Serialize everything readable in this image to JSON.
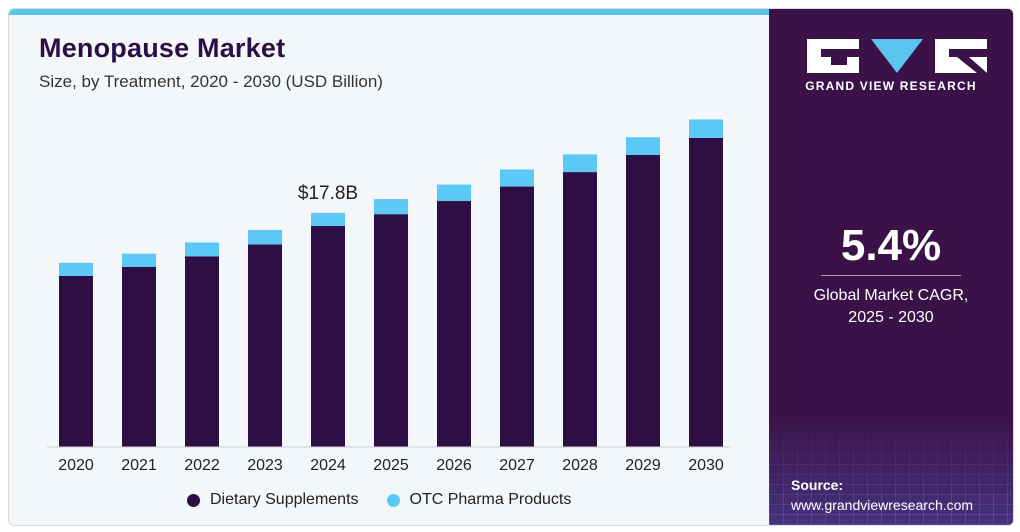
{
  "header": {
    "title": "Menopause Market",
    "subtitle": "Size, by Treatment, 2020 - 2030 (USD Billion)"
  },
  "colors": {
    "dietary": "#2e0f45",
    "otc": "#5bc8f5",
    "accent": "#5bc4ef",
    "panel": "#3a1248"
  },
  "chart_data": {
    "type": "bar",
    "stacked": true,
    "categories": [
      "2020",
      "2021",
      "2022",
      "2023",
      "2024",
      "2025",
      "2026",
      "2027",
      "2028",
      "2029",
      "2030"
    ],
    "series": [
      {
        "name": "Dietary Supplements",
        "values": [
          13.0,
          13.7,
          14.5,
          15.4,
          16.8,
          17.7,
          18.7,
          19.8,
          20.9,
          22.2,
          23.5
        ]
      },
      {
        "name": "OTC Pharma Products",
        "values": [
          1.0,
          1.0,
          1.05,
          1.1,
          1.0,
          1.15,
          1.25,
          1.3,
          1.35,
          1.35,
          1.4
        ]
      }
    ],
    "annotations": [
      {
        "category": "2024",
        "text": "$17.8B"
      }
    ],
    "ylim": [
      0,
      26
    ],
    "grid": false,
    "legend": "bottom"
  },
  "legend": {
    "items": [
      "Dietary Supplements",
      "OTC Pharma Products"
    ]
  },
  "sidebar": {
    "brand": "GRAND VIEW RESEARCH",
    "cagr_value": "5.4%",
    "cagr_label_line1": "Global Market CAGR,",
    "cagr_label_line2": "2025 - 2030",
    "source_label": "Source:",
    "source_url": "www.grandviewresearch.com"
  }
}
